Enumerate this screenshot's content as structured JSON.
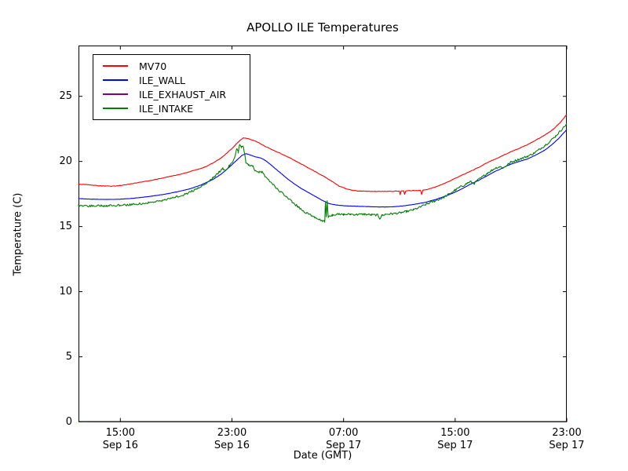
{
  "figure": {
    "background": "#ffffff",
    "axes_color": "#000000"
  },
  "chart_data": {
    "type": "line",
    "title": "APOLLO ILE Temperatures",
    "xlabel": "Date (GMT)",
    "ylabel": "Temperature (C)",
    "x_unit_hours_origin": "Sep 16 12:00 GMT",
    "xlim": [
      0,
      35
    ],
    "ylim": [
      0,
      28.9
    ],
    "grid": false,
    "legend_position": "upper-left",
    "yticks": [
      {
        "value": 0,
        "label": "0"
      },
      {
        "value": 5,
        "label": "5"
      },
      {
        "value": 10,
        "label": "10"
      },
      {
        "value": 15,
        "label": "15"
      },
      {
        "value": 20,
        "label": "20"
      },
      {
        "value": 25,
        "label": "25"
      }
    ],
    "xticks": [
      {
        "t": 3,
        "time": "15:00",
        "date": "Sep 16"
      },
      {
        "t": 11,
        "time": "23:00",
        "date": "Sep 16"
      },
      {
        "t": 19,
        "time": "07:00",
        "date": "Sep 17"
      },
      {
        "t": 27,
        "time": "15:00",
        "date": "Sep 17"
      },
      {
        "t": 35,
        "time": "23:00",
        "date": "Sep 17"
      }
    ],
    "series": [
      {
        "name": "MV70",
        "color": "#ff0000",
        "noise": 0.018,
        "points": [
          [
            0,
            18.25
          ],
          [
            0.8,
            18.2
          ],
          [
            1.6,
            18.12
          ],
          [
            2.4,
            18.1
          ],
          [
            3,
            18.15
          ],
          [
            3.6,
            18.25
          ],
          [
            4.4,
            18.4
          ],
          [
            5.2,
            18.55
          ],
          [
            6,
            18.72
          ],
          [
            6.8,
            18.9
          ],
          [
            7.6,
            19.1
          ],
          [
            8.4,
            19.35
          ],
          [
            9,
            19.55
          ],
          [
            9.6,
            19.85
          ],
          [
            10.2,
            20.25
          ],
          [
            10.7,
            20.7
          ],
          [
            11.1,
            21.1
          ],
          [
            11.5,
            21.55
          ],
          [
            11.8,
            21.8
          ],
          [
            12,
            21.78
          ],
          [
            12.4,
            21.68
          ],
          [
            12.8,
            21.5
          ],
          [
            13.4,
            21.15
          ],
          [
            14,
            20.85
          ],
          [
            14.6,
            20.55
          ],
          [
            15.2,
            20.25
          ],
          [
            15.8,
            19.9
          ],
          [
            16.4,
            19.55
          ],
          [
            17,
            19.2
          ],
          [
            17.6,
            18.85
          ],
          [
            18.2,
            18.45
          ],
          [
            18.7,
            18.1
          ],
          [
            19.2,
            17.9
          ],
          [
            19.7,
            17.78
          ],
          [
            20.2,
            17.72
          ],
          [
            21,
            17.7
          ],
          [
            22,
            17.7
          ],
          [
            22.8,
            17.72
          ],
          [
            23,
            17.73
          ],
          [
            23.06,
            17.45
          ],
          [
            23.12,
            17.73
          ],
          [
            23.3,
            17.74
          ],
          [
            23.38,
            17.48
          ],
          [
            23.46,
            17.74
          ],
          [
            24,
            17.76
          ],
          [
            24.52,
            17.78
          ],
          [
            24.6,
            17.45
          ],
          [
            24.68,
            17.79
          ],
          [
            25,
            17.85
          ],
          [
            25.6,
            18.05
          ],
          [
            26.2,
            18.3
          ],
          [
            26.8,
            18.6
          ],
          [
            27.4,
            18.9
          ],
          [
            28,
            19.2
          ],
          [
            28.6,
            19.5
          ],
          [
            29.2,
            19.85
          ],
          [
            29.8,
            20.15
          ],
          [
            30.4,
            20.45
          ],
          [
            31,
            20.75
          ],
          [
            31.6,
            21
          ],
          [
            32.2,
            21.3
          ],
          [
            32.8,
            21.65
          ],
          [
            33.4,
            22
          ],
          [
            34,
            22.45
          ],
          [
            34.5,
            22.95
          ],
          [
            35,
            23.6
          ]
        ]
      },
      {
        "name": "ILE_WALL",
        "color": "#0000ff",
        "noise": 0.01,
        "points": [
          [
            0,
            17.15
          ],
          [
            1,
            17.1
          ],
          [
            2,
            17.08
          ],
          [
            3,
            17.1
          ],
          [
            4,
            17.18
          ],
          [
            5,
            17.3
          ],
          [
            6,
            17.45
          ],
          [
            7,
            17.65
          ],
          [
            8,
            17.9
          ],
          [
            8.8,
            18.2
          ],
          [
            9.6,
            18.6
          ],
          [
            10.2,
            19
          ],
          [
            10.8,
            19.55
          ],
          [
            11.3,
            20.05
          ],
          [
            11.7,
            20.45
          ],
          [
            12,
            20.6
          ],
          [
            12.3,
            20.5
          ],
          [
            12.7,
            20.35
          ],
          [
            13.1,
            20.25
          ],
          [
            13.5,
            20
          ],
          [
            14,
            19.55
          ],
          [
            14.5,
            19.1
          ],
          [
            15,
            18.65
          ],
          [
            15.5,
            18.25
          ],
          [
            16,
            17.9
          ],
          [
            16.5,
            17.6
          ],
          [
            17,
            17.3
          ],
          [
            17.5,
            17
          ],
          [
            18,
            16.75
          ],
          [
            18.5,
            16.65
          ],
          [
            19,
            16.6
          ],
          [
            20,
            16.56
          ],
          [
            21,
            16.52
          ],
          [
            22,
            16.5
          ],
          [
            22.6,
            16.52
          ],
          [
            23.2,
            16.58
          ],
          [
            23.8,
            16.66
          ],
          [
            24.4,
            16.76
          ],
          [
            25,
            16.9
          ],
          [
            25.6,
            17.08
          ],
          [
            26.2,
            17.3
          ],
          [
            26.8,
            17.55
          ],
          [
            27.4,
            17.85
          ],
          [
            28,
            18.2
          ],
          [
            28.6,
            18.5
          ],
          [
            29.2,
            18.85
          ],
          [
            29.8,
            19.2
          ],
          [
            30.4,
            19.5
          ],
          [
            31,
            19.8
          ],
          [
            31.6,
            20
          ],
          [
            32.2,
            20.2
          ],
          [
            32.8,
            20.5
          ],
          [
            33.4,
            20.85
          ],
          [
            34,
            21.35
          ],
          [
            34.5,
            21.85
          ],
          [
            35,
            22.45
          ]
        ]
      },
      {
        "name": "ILE_EXHAUST_AIR",
        "color": "#800080",
        "noise": 0,
        "points": [
          [
            0,
            0
          ],
          [
            35,
            0
          ]
        ]
      },
      {
        "name": "ILE_INTAKE",
        "color": "#008000",
        "noise": 0.08,
        "points": [
          [
            0,
            16.6
          ],
          [
            1,
            16.58
          ],
          [
            2,
            16.6
          ],
          [
            3,
            16.64
          ],
          [
            4,
            16.7
          ],
          [
            5,
            16.82
          ],
          [
            6,
            17
          ],
          [
            7,
            17.28
          ],
          [
            7.8,
            17.55
          ],
          [
            8.4,
            17.85
          ],
          [
            9,
            18.2
          ],
          [
            9.4,
            18.55
          ],
          [
            9.8,
            18.9
          ],
          [
            10.1,
            19.2
          ],
          [
            10.35,
            19.45
          ],
          [
            10.55,
            19.35
          ],
          [
            10.8,
            19.65
          ],
          [
            11.05,
            20
          ],
          [
            11.25,
            20.45
          ],
          [
            11.35,
            21
          ],
          [
            11.45,
            20.7
          ],
          [
            11.55,
            21.35
          ],
          [
            11.68,
            21.1
          ],
          [
            11.8,
            21.2
          ],
          [
            11.92,
            20.6
          ],
          [
            12,
            19.9
          ],
          [
            12.2,
            19.7
          ],
          [
            12.5,
            19.62
          ],
          [
            12.65,
            19.3
          ],
          [
            12.9,
            19.15
          ],
          [
            13.15,
            19.2
          ],
          [
            13.35,
            18.9
          ],
          [
            13.7,
            18.5
          ],
          [
            14.1,
            18.05
          ],
          [
            14.5,
            17.65
          ],
          [
            14.9,
            17.3
          ],
          [
            15.3,
            16.9
          ],
          [
            15.7,
            16.55
          ],
          [
            16.1,
            16.2
          ],
          [
            16.5,
            15.95
          ],
          [
            16.9,
            15.75
          ],
          [
            17.3,
            15.55
          ],
          [
            17.55,
            15.42
          ],
          [
            17.65,
            15.4
          ],
          [
            17.7,
            16.9
          ],
          [
            17.76,
            15.75
          ],
          [
            17.82,
            16.95
          ],
          [
            17.9,
            15.7
          ],
          [
            18.2,
            15.88
          ],
          [
            18.6,
            15.95
          ],
          [
            19,
            15.92
          ],
          [
            19.5,
            15.95
          ],
          [
            20,
            15.92
          ],
          [
            20.5,
            15.95
          ],
          [
            21,
            15.9
          ],
          [
            21.45,
            15.88
          ],
          [
            21.6,
            15.62
          ],
          [
            21.75,
            15.85
          ],
          [
            22,
            15.95
          ],
          [
            22.5,
            15.98
          ],
          [
            23,
            16.05
          ],
          [
            23.5,
            16.15
          ],
          [
            24,
            16.28
          ],
          [
            24.5,
            16.5
          ],
          [
            25,
            16.75
          ],
          [
            25.5,
            16.95
          ],
          [
            26,
            17.15
          ],
          [
            26.5,
            17.45
          ],
          [
            27,
            17.8
          ],
          [
            27.3,
            18
          ],
          [
            27.6,
            18.15
          ],
          [
            27.9,
            18.35
          ],
          [
            28.1,
            18.45
          ],
          [
            28.35,
            18.3
          ],
          [
            28.6,
            18.55
          ],
          [
            29,
            18.85
          ],
          [
            29.3,
            19.1
          ],
          [
            29.6,
            19.3
          ],
          [
            29.9,
            19.5
          ],
          [
            30.2,
            19.6
          ],
          [
            30.45,
            19.5
          ],
          [
            30.7,
            19.7
          ],
          [
            31,
            19.95
          ],
          [
            31.4,
            20.1
          ],
          [
            31.8,
            20.25
          ],
          [
            32.2,
            20.4
          ],
          [
            32.6,
            20.6
          ],
          [
            33,
            20.9
          ],
          [
            33.4,
            21.2
          ],
          [
            33.8,
            21.55
          ],
          [
            34.2,
            21.95
          ],
          [
            34.6,
            22.4
          ],
          [
            35,
            22.9
          ]
        ]
      }
    ]
  }
}
